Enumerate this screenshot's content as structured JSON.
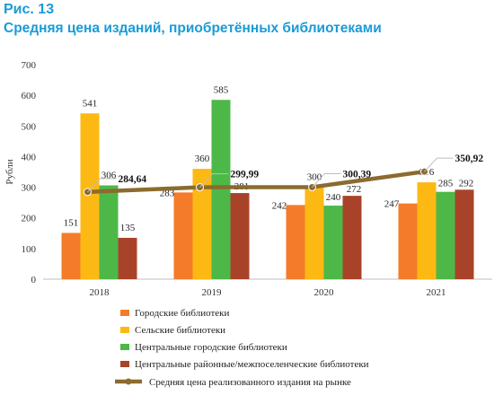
{
  "figure": {
    "label": "Рис. 13",
    "title": "Средняя цена изданий, приобретённых библиотеками"
  },
  "chart_data": {
    "type": "bar",
    "categories": [
      "2018",
      "2019",
      "2020",
      "2021"
    ],
    "ylabel": "Рубли",
    "xlabel": "",
    "ylim": [
      0,
      700
    ],
    "yticks": [
      "0",
      "100",
      "200",
      "300",
      "400",
      "500",
      "600",
      "700"
    ],
    "grid": false,
    "legend_position": "bottom",
    "series": [
      {
        "name": "Городские библиотеки",
        "type": "bar",
        "color": "#f47b2a",
        "values": [
          151,
          283,
          242,
          247
        ],
        "labels": [
          "151",
          "283",
          "242",
          "247"
        ]
      },
      {
        "name": "Сельские библиотеки",
        "type": "bar",
        "color": "#fdb913",
        "values": [
          541,
          360,
          300,
          316
        ],
        "labels": [
          "541",
          "360",
          "300",
          "316"
        ]
      },
      {
        "name": "Центральные городские библиотеки",
        "type": "bar",
        "color": "#4db848",
        "values": [
          306,
          585,
          240,
          285
        ],
        "labels": [
          "306",
          "585",
          "240",
          "285"
        ]
      },
      {
        "name": "Центральные районные/межпоселенческие библиотеки",
        "type": "bar",
        "color": "#a8432a",
        "values": [
          135,
          281,
          272,
          292
        ],
        "labels": [
          "135",
          "281",
          "272",
          "292"
        ]
      },
      {
        "name": "Средняя цена реализованного издания на рынке",
        "type": "line",
        "color": "#8b6b2e",
        "values": [
          284.64,
          299.99,
          300.39,
          350.92
        ],
        "labels": [
          "284,64",
          "299,99",
          "300,39",
          "350,92"
        ]
      }
    ]
  }
}
